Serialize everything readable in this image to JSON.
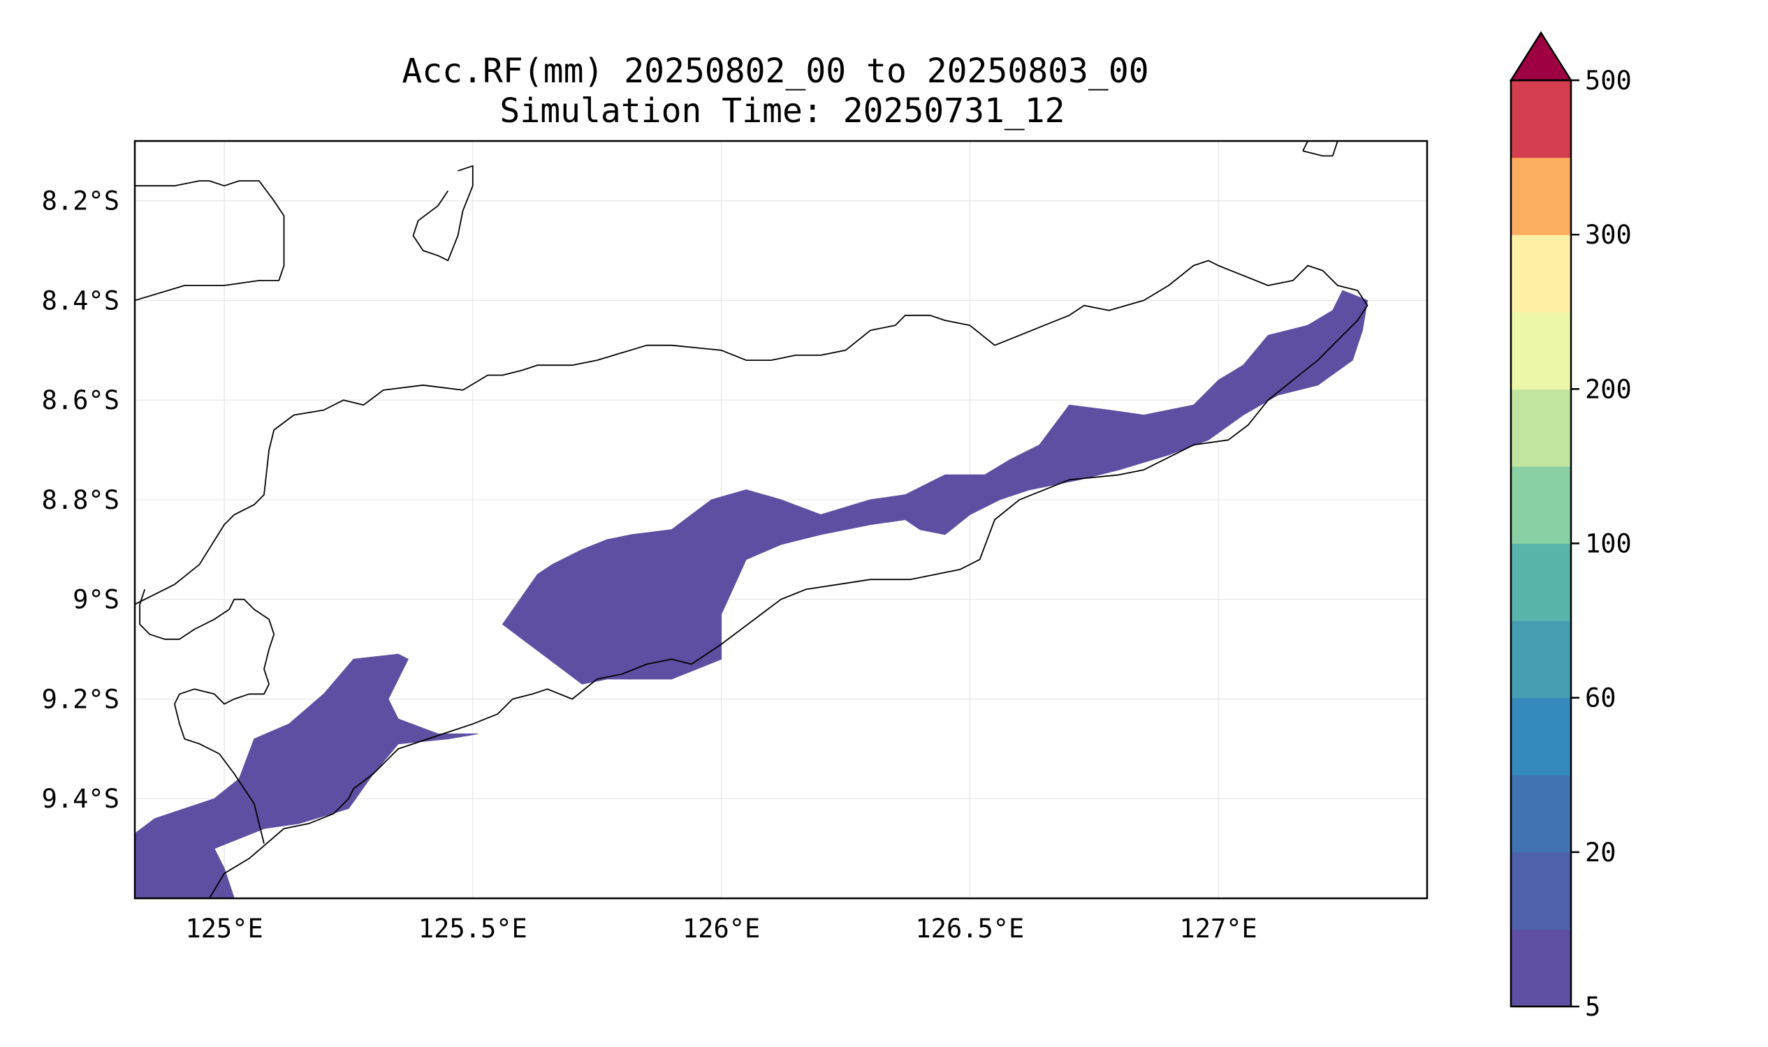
{
  "title": {
    "line1": "Acc.RF(mm) 20250802_00 to 20250803_00",
    "line2": "Simulation Time: 20250731_12"
  },
  "map": {
    "lon_range": [
      124.82,
      127.42
    ],
    "lat_range": [
      -9.6,
      -8.08
    ],
    "x_ticks": [
      {
        "value": 125.0,
        "label": "125°E"
      },
      {
        "value": 125.5,
        "label": "125.5°E"
      },
      {
        "value": 126.0,
        "label": "126°E"
      },
      {
        "value": 126.5,
        "label": "126.5°E"
      },
      {
        "value": 127.0,
        "label": "127°E"
      }
    ],
    "y_ticks": [
      {
        "value": -8.2,
        "label": "8.2°S"
      },
      {
        "value": -8.4,
        "label": "8.4°S"
      },
      {
        "value": -8.6,
        "label": "8.6°S"
      },
      {
        "value": -8.8,
        "label": "8.8°S"
      },
      {
        "value": -9.0,
        "label": "9°S"
      },
      {
        "value": -9.2,
        "label": "9.2°S"
      },
      {
        "value": -9.4,
        "label": "9.4°S"
      }
    ],
    "gridlines": true,
    "rain_color": "#5e4fa2",
    "rain_areas": [
      [
        [
          124.82,
          -9.47
        ],
        [
          124.86,
          -9.44
        ],
        [
          124.98,
          -9.4
        ],
        [
          125.03,
          -9.36
        ],
        [
          125.06,
          -9.28
        ],
        [
          125.13,
          -9.25
        ],
        [
          125.2,
          -9.19
        ],
        [
          125.26,
          -9.12
        ],
        [
          125.35,
          -9.11
        ],
        [
          125.37,
          -9.12
        ],
        [
          125.35,
          -9.16
        ],
        [
          125.33,
          -9.2
        ],
        [
          125.35,
          -9.24
        ],
        [
          125.43,
          -9.27
        ],
        [
          125.51,
          -9.27
        ],
        [
          125.45,
          -9.28
        ],
        [
          125.35,
          -9.29
        ],
        [
          125.3,
          -9.35
        ],
        [
          125.25,
          -9.42
        ],
        [
          125.15,
          -9.45
        ],
        [
          125.08,
          -9.46
        ],
        [
          124.98,
          -9.5
        ],
        [
          125.0,
          -9.54
        ],
        [
          125.02,
          -9.6
        ],
        [
          124.82,
          -9.6
        ]
      ],
      [
        [
          125.56,
          -9.05
        ],
        [
          125.63,
          -8.95
        ],
        [
          125.66,
          -8.93
        ],
        [
          125.72,
          -8.9
        ],
        [
          125.77,
          -8.88
        ],
        [
          125.82,
          -8.87
        ],
        [
          125.9,
          -8.86
        ],
        [
          125.98,
          -8.8
        ],
        [
          126.05,
          -8.78
        ],
        [
          126.12,
          -8.8
        ],
        [
          126.2,
          -8.83
        ],
        [
          126.3,
          -8.8
        ],
        [
          126.37,
          -8.79
        ],
        [
          126.45,
          -8.75
        ],
        [
          126.53,
          -8.75
        ],
        [
          126.58,
          -8.72
        ],
        [
          126.64,
          -8.69
        ],
        [
          126.7,
          -8.61
        ],
        [
          126.78,
          -8.62
        ],
        [
          126.85,
          -8.63
        ],
        [
          126.95,
          -8.61
        ],
        [
          127.0,
          -8.56
        ],
        [
          127.05,
          -8.53
        ],
        [
          127.1,
          -8.47
        ],
        [
          127.18,
          -8.45
        ],
        [
          127.23,
          -8.42
        ],
        [
          127.25,
          -8.38
        ],
        [
          127.3,
          -8.4
        ],
        [
          127.29,
          -8.46
        ],
        [
          127.27,
          -8.52
        ],
        [
          127.2,
          -8.57
        ],
        [
          127.12,
          -8.59
        ],
        [
          127.05,
          -8.63
        ],
        [
          126.98,
          -8.68
        ],
        [
          126.9,
          -8.71
        ],
        [
          126.8,
          -8.74
        ],
        [
          126.72,
          -8.76
        ],
        [
          126.62,
          -8.78
        ],
        [
          126.56,
          -8.8
        ],
        [
          126.5,
          -8.83
        ],
        [
          126.45,
          -8.87
        ],
        [
          126.4,
          -8.86
        ],
        [
          126.37,
          -8.84
        ],
        [
          126.3,
          -8.85
        ],
        [
          126.25,
          -8.86
        ],
        [
          126.2,
          -8.87
        ],
        [
          126.12,
          -8.89
        ],
        [
          126.05,
          -8.92
        ],
        [
          126.0,
          -9.03
        ],
        [
          126.0,
          -9.12
        ],
        [
          125.9,
          -9.16
        ],
        [
          125.83,
          -9.16
        ],
        [
          125.77,
          -9.16
        ],
        [
          125.72,
          -9.17
        ],
        [
          125.64,
          -9.11
        ],
        [
          125.6,
          -9.08
        ]
      ]
    ],
    "coastlines": [
      [
        [
          124.82,
          -8.17
        ],
        [
          124.9,
          -8.17
        ],
        [
          124.95,
          -8.16
        ],
        [
          124.97,
          -8.16
        ],
        [
          125.0,
          -8.17
        ],
        [
          125.03,
          -8.16
        ],
        [
          125.07,
          -8.16
        ],
        [
          125.1,
          -8.2
        ],
        [
          125.12,
          -8.23
        ],
        [
          125.12,
          -8.33
        ],
        [
          125.11,
          -8.36
        ],
        [
          125.07,
          -8.36
        ],
        [
          125.0,
          -8.37
        ],
        [
          124.92,
          -8.37
        ],
        [
          124.82,
          -8.4
        ]
      ],
      [
        [
          125.47,
          -8.14
        ],
        [
          125.5,
          -8.13
        ],
        [
          125.5,
          -8.17
        ],
        [
          125.48,
          -8.22
        ],
        [
          125.47,
          -8.27
        ],
        [
          125.45,
          -8.32
        ],
        [
          125.43,
          -8.31
        ],
        [
          125.4,
          -8.3
        ],
        [
          125.38,
          -8.27
        ],
        [
          125.39,
          -8.24
        ],
        [
          125.43,
          -8.21
        ],
        [
          125.45,
          -8.18
        ]
      ],
      [
        [
          127.17,
          -8.1
        ],
        [
          127.18,
          -8.08
        ],
        [
          127.24,
          -8.08
        ],
        [
          127.23,
          -8.11
        ],
        [
          127.21,
          -8.11
        ],
        [
          127.17,
          -8.1
        ]
      ],
      [
        [
          124.82,
          -9.01
        ],
        [
          124.86,
          -8.99
        ],
        [
          124.9,
          -8.97
        ],
        [
          124.95,
          -8.93
        ],
        [
          125.0,
          -8.85
        ],
        [
          125.02,
          -8.83
        ],
        [
          125.06,
          -8.81
        ],
        [
          125.08,
          -8.79
        ],
        [
          125.09,
          -8.7
        ],
        [
          125.1,
          -8.66
        ],
        [
          125.14,
          -8.63
        ],
        [
          125.2,
          -8.62
        ],
        [
          125.24,
          -8.6
        ],
        [
          125.28,
          -8.61
        ],
        [
          125.32,
          -8.58
        ],
        [
          125.4,
          -8.57
        ],
        [
          125.48,
          -8.58
        ],
        [
          125.53,
          -8.55
        ],
        [
          125.56,
          -8.55
        ],
        [
          125.6,
          -8.54
        ],
        [
          125.63,
          -8.53
        ],
        [
          125.66,
          -8.53
        ],
        [
          125.7,
          -8.53
        ],
        [
          125.75,
          -8.52
        ],
        [
          125.85,
          -8.49
        ],
        [
          125.9,
          -8.49
        ],
        [
          126.0,
          -8.5
        ],
        [
          126.05,
          -8.52
        ],
        [
          126.1,
          -8.52
        ],
        [
          126.15,
          -8.51
        ],
        [
          126.2,
          -8.51
        ],
        [
          126.25,
          -8.5
        ],
        [
          126.3,
          -8.46
        ],
        [
          126.35,
          -8.45
        ],
        [
          126.37,
          -8.43
        ],
        [
          126.42,
          -8.43
        ],
        [
          126.45,
          -8.44
        ],
        [
          126.5,
          -8.45
        ],
        [
          126.55,
          -8.49
        ],
        [
          126.6,
          -8.47
        ],
        [
          126.65,
          -8.45
        ],
        [
          126.7,
          -8.43
        ],
        [
          126.73,
          -8.41
        ],
        [
          126.78,
          -8.42
        ],
        [
          126.85,
          -8.4
        ],
        [
          126.9,
          -8.37
        ],
        [
          126.95,
          -8.33
        ],
        [
          126.98,
          -8.32
        ],
        [
          127.0,
          -8.33
        ],
        [
          127.05,
          -8.35
        ],
        [
          127.1,
          -8.37
        ],
        [
          127.15,
          -8.36
        ],
        [
          127.18,
          -8.33
        ],
        [
          127.21,
          -8.34
        ],
        [
          127.24,
          -8.37
        ],
        [
          127.28,
          -8.38
        ],
        [
          127.3,
          -8.41
        ],
        [
          127.28,
          -8.44
        ],
        [
          127.24,
          -8.48
        ],
        [
          127.2,
          -8.52
        ],
        [
          127.15,
          -8.56
        ],
        [
          127.1,
          -8.6
        ],
        [
          127.06,
          -8.65
        ],
        [
          127.02,
          -8.68
        ],
        [
          126.95,
          -8.69
        ],
        [
          126.85,
          -8.74
        ],
        [
          126.8,
          -8.75
        ],
        [
          126.7,
          -8.76
        ],
        [
          126.6,
          -8.8
        ],
        [
          126.55,
          -8.84
        ],
        [
          126.52,
          -8.92
        ],
        [
          126.48,
          -8.94
        ],
        [
          126.38,
          -8.96
        ],
        [
          126.3,
          -8.96
        ],
        [
          126.17,
          -8.98
        ],
        [
          126.12,
          -9.0
        ],
        [
          126.08,
          -9.03
        ],
        [
          126.0,
          -9.09
        ],
        [
          125.94,
          -9.13
        ],
        [
          125.9,
          -9.12
        ],
        [
          125.85,
          -9.13
        ],
        [
          125.8,
          -9.15
        ],
        [
          125.75,
          -9.16
        ],
        [
          125.7,
          -9.2
        ],
        [
          125.65,
          -9.18
        ],
        [
          125.62,
          -9.19
        ],
        [
          125.58,
          -9.2
        ],
        [
          125.55,
          -9.23
        ],
        [
          125.5,
          -9.25
        ],
        [
          125.44,
          -9.27
        ],
        [
          125.35,
          -9.3
        ],
        [
          125.3,
          -9.35
        ],
        [
          125.26,
          -9.38
        ],
        [
          125.25,
          -9.4
        ],
        [
          125.22,
          -9.43
        ],
        [
          125.17,
          -9.45
        ],
        [
          125.12,
          -9.46
        ],
        [
          125.05,
          -9.52
        ],
        [
          125.0,
          -9.55
        ],
        [
          124.97,
          -9.6
        ]
      ],
      [
        [
          125.08,
          -9.49
        ],
        [
          125.06,
          -9.41
        ],
        [
          125.02,
          -9.35
        ],
        [
          124.99,
          -9.31
        ],
        [
          124.95,
          -9.29
        ],
        [
          124.92,
          -9.28
        ],
        [
          124.91,
          -9.25
        ],
        [
          124.9,
          -9.21
        ],
        [
          124.91,
          -9.19
        ],
        [
          124.94,
          -9.18
        ],
        [
          124.98,
          -9.19
        ],
        [
          125.0,
          -9.21
        ],
        [
          125.02,
          -9.2
        ],
        [
          125.05,
          -9.19
        ],
        [
          125.08,
          -9.19
        ],
        [
          125.09,
          -9.17
        ],
        [
          125.08,
          -9.14
        ],
        [
          125.09,
          -9.1
        ],
        [
          125.1,
          -9.07
        ],
        [
          125.09,
          -9.04
        ],
        [
          125.06,
          -9.02
        ],
        [
          125.04,
          -9.0
        ],
        [
          125.02,
          -9.0
        ],
        [
          125.01,
          -9.02
        ],
        [
          124.98,
          -9.04
        ],
        [
          124.94,
          -9.06
        ],
        [
          124.91,
          -9.08
        ],
        [
          124.88,
          -9.08
        ],
        [
          124.85,
          -9.07
        ],
        [
          124.83,
          -9.05
        ],
        [
          124.83,
          -9.01
        ],
        [
          124.84,
          -8.98
        ]
      ]
    ]
  },
  "colorbar": {
    "levels": [
      5,
      10,
      20,
      40,
      60,
      80,
      100,
      150,
      200,
      250,
      300,
      350,
      500
    ],
    "colors": [
      "#5e4fa2",
      "#4f61aa",
      "#4173b3",
      "#3489bd",
      "#469eb3",
      "#59b4aa",
      "#89d0a4",
      "#c2e69f",
      "#eef8a8",
      "#fff0a6",
      "#fdad60",
      "#d53e4f"
    ],
    "extend_color": "#9e0142",
    "ticks": [
      {
        "value": 5,
        "label": "5"
      },
      {
        "value": 20,
        "label": "20"
      },
      {
        "value": 60,
        "label": "60"
      },
      {
        "value": 100,
        "label": "100"
      },
      {
        "value": 200,
        "label": "200"
      },
      {
        "value": 300,
        "label": "300"
      },
      {
        "value": 500,
        "label": "500"
      }
    ]
  }
}
